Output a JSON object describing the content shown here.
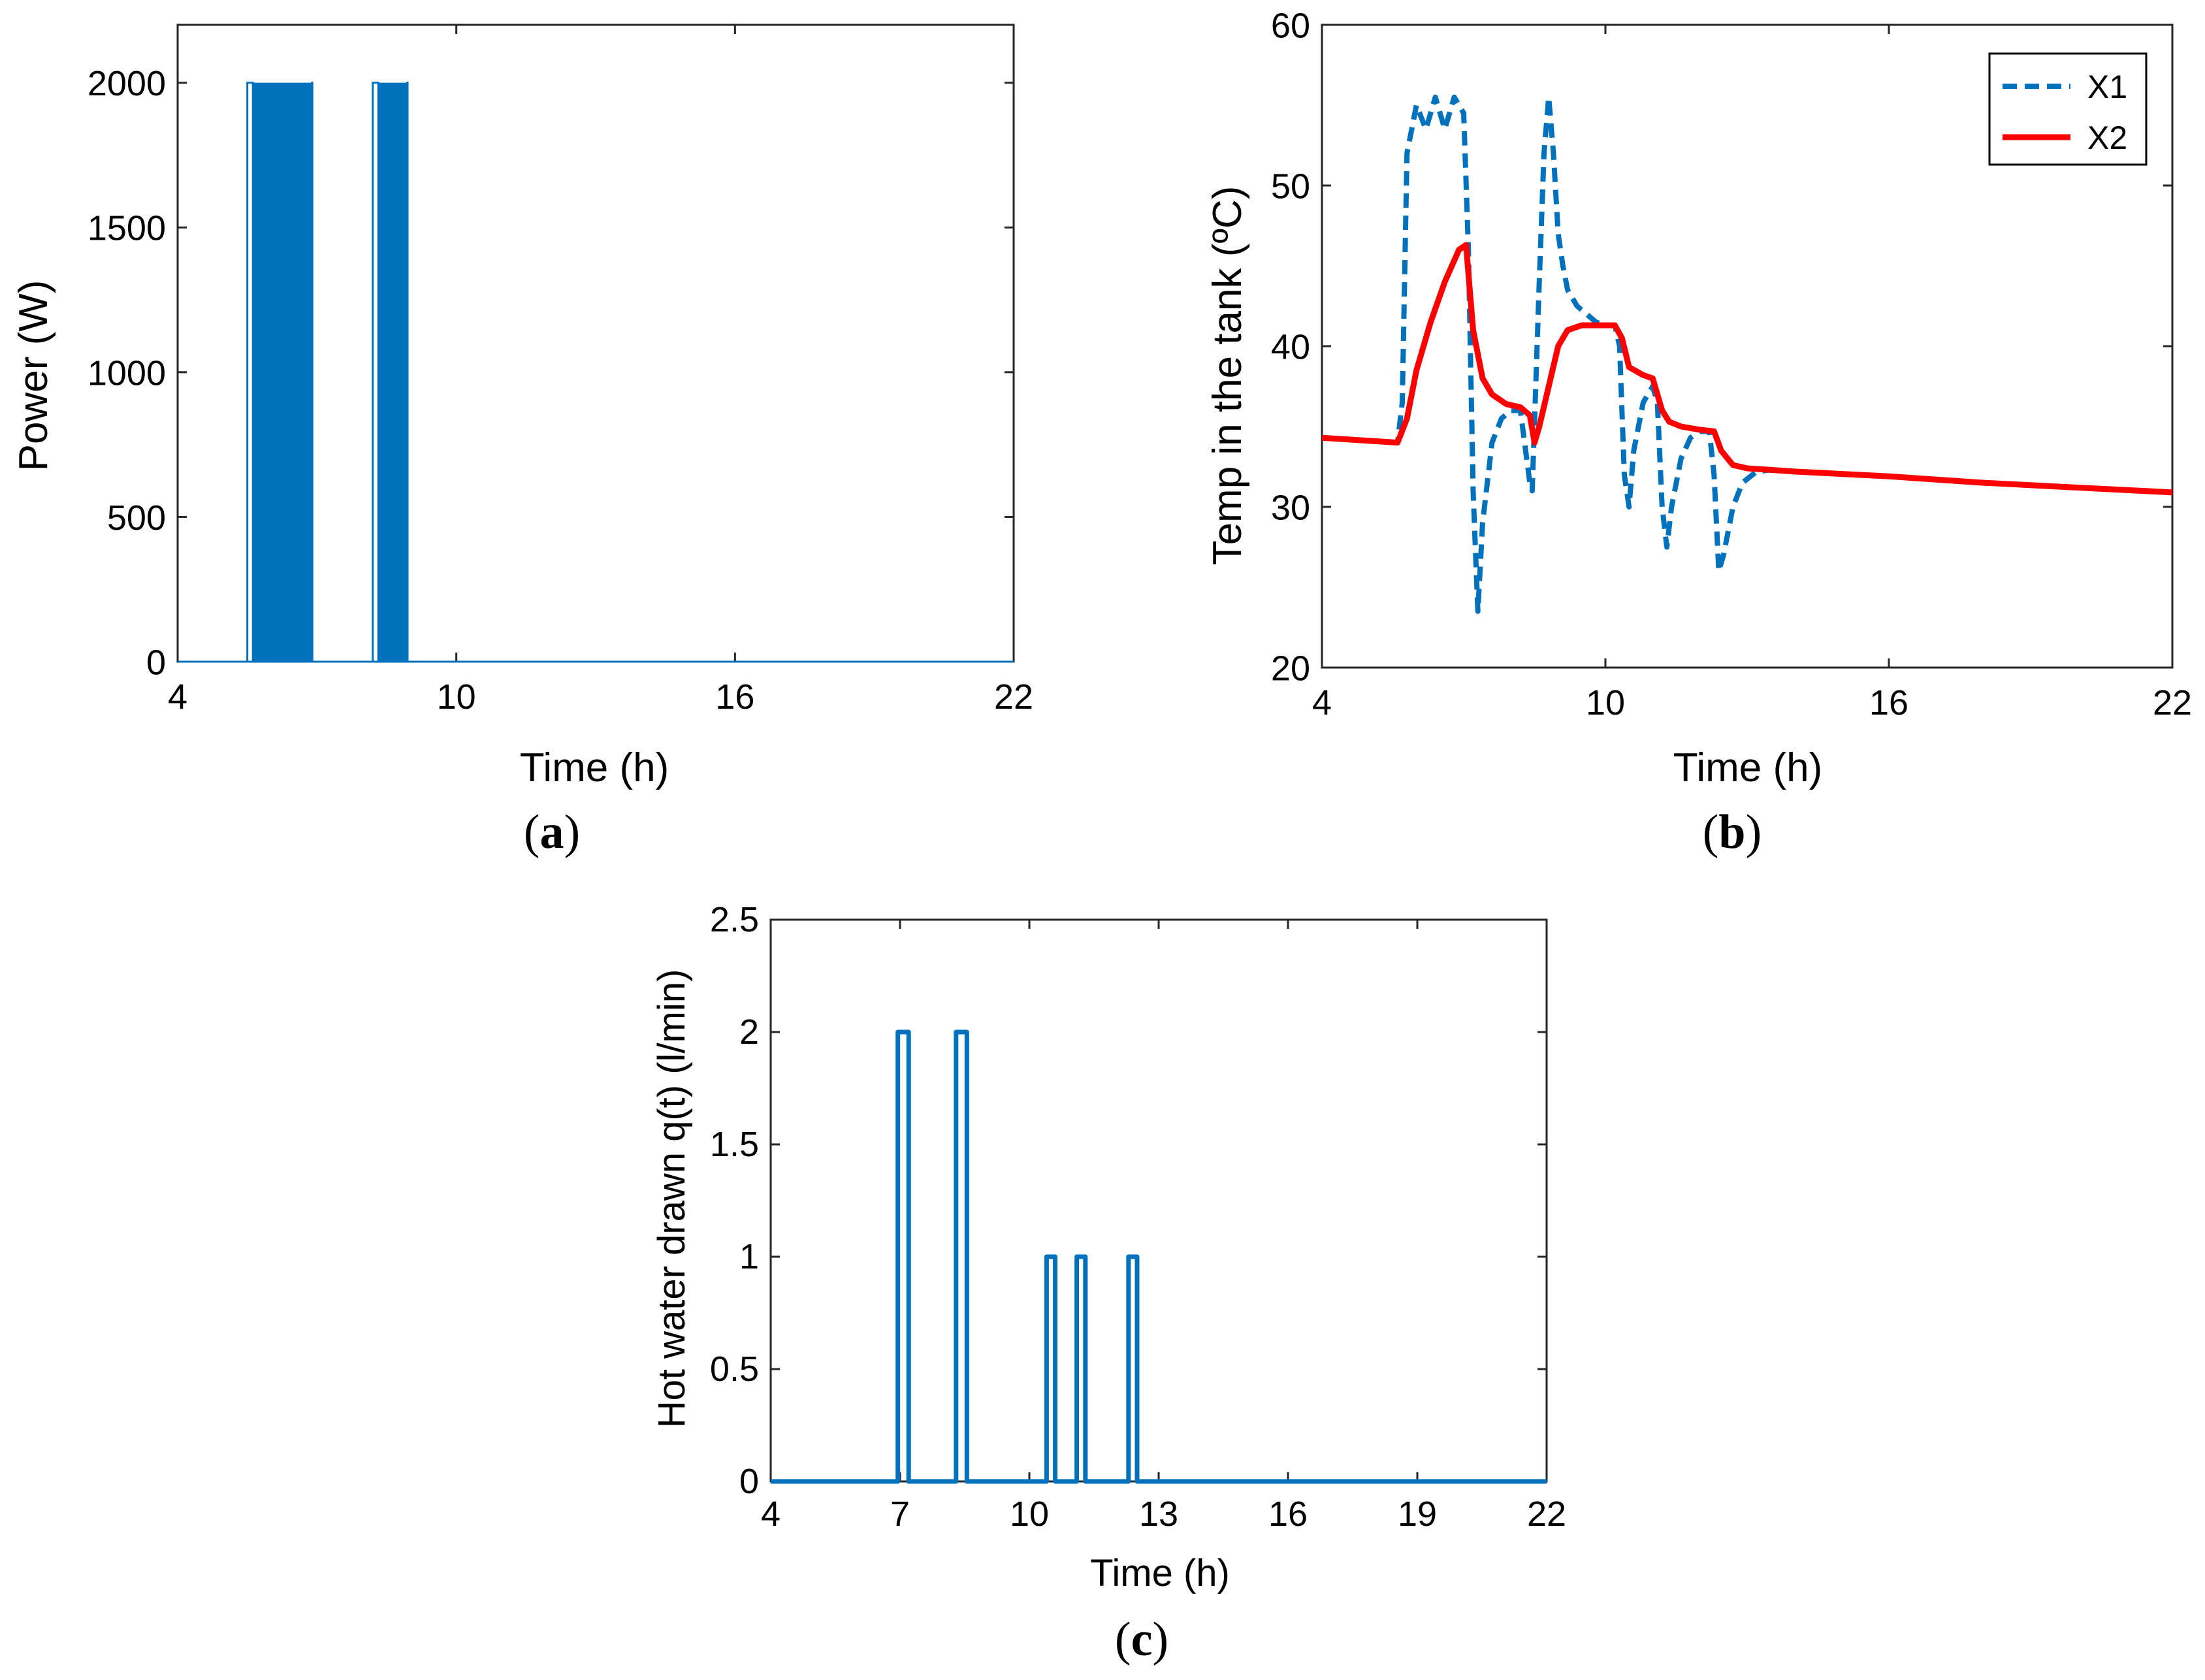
{
  "chart_data": [
    {
      "id": "a",
      "type": "line",
      "panel_label": "a",
      "xlabel": "Time (h)",
      "ylabel": "Power (W)",
      "xlim": [
        4,
        22
      ],
      "ylim": [
        0,
        2200
      ],
      "xticks": [
        "4",
        "10",
        "16",
        "22"
      ],
      "yticks": [
        "0",
        "500",
        "1000",
        "1500",
        "2000"
      ],
      "grid": false,
      "series": [
        {
          "color": "#0072BD",
          "style": "solid",
          "on_off_bursts": [
            {
              "start": 5.5,
              "end": 6.9,
              "on_level": 2000,
              "off_level": 0,
              "switching": "rapid"
            },
            {
              "start": 8.2,
              "end": 8.95,
              "on_level": 2000,
              "off_level": 0,
              "switching": "rapid"
            }
          ],
          "baseline": 0
        }
      ]
    },
    {
      "id": "b",
      "type": "line",
      "panel_label": "b",
      "xlabel": "Time (h)",
      "ylabel": "Temp in the tank (ºC)",
      "xlim": [
        4,
        22
      ],
      "ylim": [
        20,
        60
      ],
      "xticks": [
        "4",
        "10",
        "16",
        "22"
      ],
      "yticks": [
        "20",
        "30",
        "40",
        "50",
        "60"
      ],
      "grid": false,
      "legend": {
        "position": "top-right",
        "entries": [
          "X1",
          "X2"
        ]
      },
      "series": [
        {
          "name": "X1",
          "color": "#0072BD",
          "style": "dashed",
          "x": [
            4,
            5.6,
            5.7,
            5.8,
            6.0,
            6.2,
            6.4,
            6.6,
            6.8,
            7.0,
            7.1,
            7.2,
            7.3,
            7.4,
            7.6,
            7.8,
            8.0,
            8.2,
            8.4,
            8.45,
            8.6,
            8.7,
            8.8,
            8.9,
            9.0,
            9.1,
            9.2,
            9.4,
            9.6,
            9.8,
            10.0,
            10.2,
            10.3,
            10.4,
            10.5,
            10.6,
            10.8,
            11.0,
            11.1,
            11.2,
            11.3,
            11.4,
            11.6,
            11.8,
            12.0,
            12.2,
            12.3,
            12.4,
            12.5,
            12.7,
            12.9,
            13.2,
            13.5,
            14,
            16,
            18,
            20,
            22
          ],
          "y": [
            34.3,
            34.0,
            36.5,
            52,
            55,
            53.5,
            55.5,
            53.5,
            55.5,
            54.5,
            46,
            31,
            23.5,
            29,
            34,
            35.5,
            36,
            36,
            31.5,
            31,
            44,
            52,
            55.5,
            52,
            47,
            45,
            43.5,
            42.5,
            42,
            41.5,
            41.3,
            41.3,
            40,
            32,
            30,
            33.5,
            36.5,
            37.5,
            36.5,
            30,
            27.5,
            30,
            33,
            34.3,
            34.7,
            34.7,
            32,
            26,
            27,
            30,
            31.5,
            32.2,
            32.3,
            32.2,
            31.9,
            31.5,
            31.2,
            30.9
          ]
        },
        {
          "name": "X2",
          "color": "#FF0000",
          "style": "solid",
          "x": [
            4,
            5.6,
            5.8,
            6.0,
            6.3,
            6.6,
            6.9,
            7.05,
            7.2,
            7.4,
            7.6,
            7.9,
            8.2,
            8.4,
            8.5,
            8.6,
            8.8,
            9.0,
            9.2,
            9.5,
            10.0,
            10.2,
            10.35,
            10.5,
            10.8,
            11.0,
            11.2,
            11.35,
            11.6,
            12.0,
            12.3,
            12.45,
            12.7,
            13.0,
            13.5,
            14,
            16,
            18,
            20,
            22
          ],
          "y": [
            34.3,
            34.0,
            35.5,
            38.5,
            41.5,
            44,
            46,
            46.3,
            41,
            38,
            37,
            36.4,
            36.2,
            35.7,
            34,
            35,
            37.5,
            40,
            41,
            41.3,
            41.3,
            41.3,
            40.5,
            38.7,
            38.2,
            38.0,
            36,
            35.3,
            35.0,
            34.8,
            34.7,
            33.5,
            32.6,
            32.4,
            32.3,
            32.2,
            31.9,
            31.5,
            31.2,
            30.9
          ]
        }
      ]
    },
    {
      "id": "c",
      "type": "line",
      "panel_label": "c",
      "xlabel": "Time (h)",
      "ylabel": "Hot water drawn q(t) (l/min)",
      "xlim": [
        4,
        22
      ],
      "ylim": [
        0,
        2.5
      ],
      "xticks": [
        "4",
        "7",
        "10",
        "13",
        "16",
        "19",
        "22"
      ],
      "yticks": [
        "0",
        "0.5",
        "1",
        "1.5",
        "2",
        "2.5"
      ],
      "grid": false,
      "series": [
        {
          "color": "#0072BD",
          "style": "solid",
          "pulses": [
            {
              "start": 6.95,
              "end": 7.2,
              "value": 2
            },
            {
              "start": 8.3,
              "end": 8.55,
              "value": 2
            },
            {
              "start": 10.4,
              "end": 10.6,
              "value": 1
            },
            {
              "start": 11.1,
              "end": 11.3,
              "value": 1
            },
            {
              "start": 12.3,
              "end": 12.5,
              "value": 1
            }
          ],
          "baseline": 0
        }
      ]
    }
  ]
}
